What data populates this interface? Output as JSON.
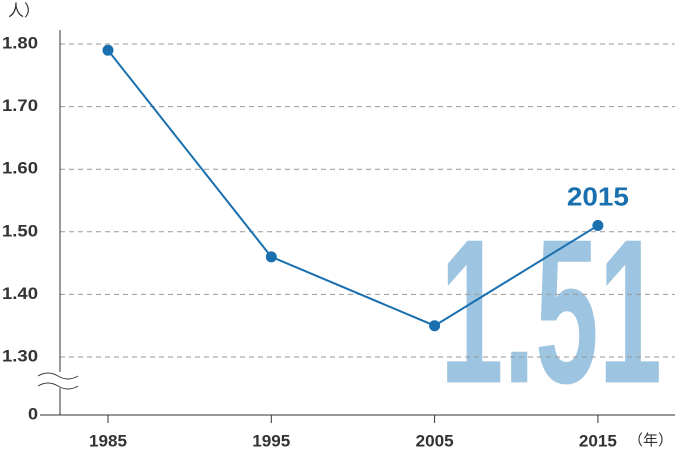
{
  "chart_data": {
    "type": "line",
    "y_unit": "人）",
    "x_unit": "（年）",
    "categories": [
      "1985",
      "1995",
      "2005",
      "2015"
    ],
    "series": [
      {
        "name": null,
        "color": "#1a6fae",
        "values": [
          1.79,
          1.46,
          1.35,
          1.51
        ]
      }
    ],
    "ylim": [
      1.2,
      1.85
    ],
    "yticks": [
      0,
      {
        "value": 1.3,
        "label": "1.30"
      },
      {
        "value": 1.4,
        "label": "1.40"
      },
      {
        "value": 1.5,
        "label": "1.50"
      },
      {
        "value": 1.6,
        "label": "1.60"
      },
      {
        "value": 1.7,
        "label": "1.70"
      },
      {
        "value": 1.8,
        "label": "1.80"
      }
    ],
    "axis_break": true,
    "grid": true,
    "point_label": "2015",
    "highlight_label": "1.51",
    "highlight_color": "#9dc4e0"
  }
}
